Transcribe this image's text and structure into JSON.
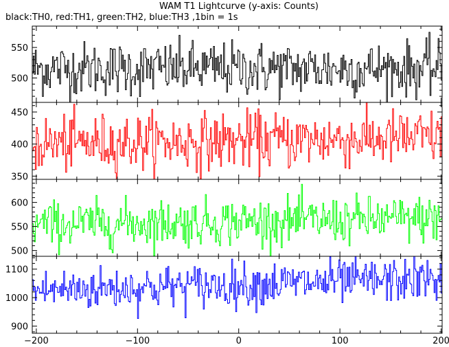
{
  "chart": {
    "title": "WAM T1 Lightcurve (y-axis: Counts)",
    "subtitle": "black:TH0, red:TH1, green:TH2, blue:TH3 ,1bin = 1s"
  },
  "chart_data": {
    "type": "line",
    "title": "WAM T1 Lightcurve (y-axis: Counts)",
    "subtitle": "black:TH0, red:TH1, green:TH2, blue:TH3 ,1bin = 1s",
    "x_range": [
      -204,
      201
    ],
    "x_ticks": [
      -200,
      -100,
      0,
      100,
      200
    ],
    "panels": [
      {
        "series": "TH0",
        "color": "#000000",
        "ylim": [
          460,
          585
        ],
        "yticks": [
          500,
          550
        ],
        "mean": 515,
        "noise": 22,
        "trend": 0
      },
      {
        "series": "TH1",
        "color": "#ff0000",
        "ylim": [
          345,
          465
        ],
        "yticks": [
          350,
          400,
          450
        ],
        "mean": 405,
        "noise": 22,
        "trend": 10
      },
      {
        "series": "TH2",
        "color": "#00ff00",
        "ylim": [
          488,
          648
        ],
        "yticks": [
          500,
          550,
          600
        ],
        "mean": 560,
        "noise": 24,
        "trend": 12
      },
      {
        "series": "TH3",
        "color": "#0000ff",
        "ylim": [
          875,
          1145
        ],
        "yticks": [
          900,
          1000,
          1100
        ],
        "mean": 1045,
        "noise": 38,
        "trend": 40
      }
    ]
  }
}
